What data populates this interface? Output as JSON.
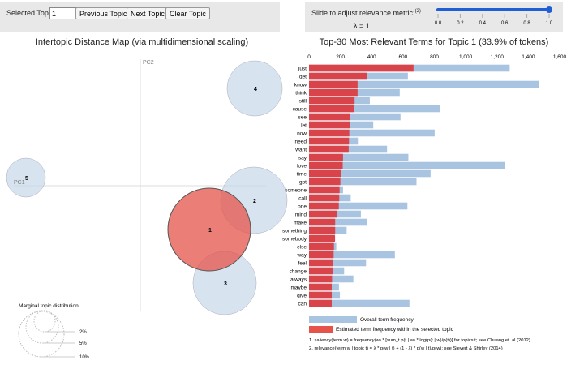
{
  "controls": {
    "selected_topic_label": "Selected Topic:",
    "selected_topic_value": "1",
    "previous_label": "Previous Topic",
    "next_label": "Next Topic",
    "clear_label": "Clear Topic",
    "slider_label": "Slide to adjust relevance metric:",
    "slider_footnote": "(2)",
    "lambda_text": "λ = 1",
    "lambda_value": 1,
    "slider_ticks": [
      "0.0",
      "0.2",
      "0.4",
      "0.6",
      "0.8",
      "1.0"
    ],
    "slider_color": "#1f5fd6"
  },
  "left": {
    "title": "Intertopic Distance Map (via multidimensional scaling)",
    "pc1": "PC1",
    "pc2": "PC2",
    "topics": [
      {
        "id": "1",
        "selected": true
      },
      {
        "id": "2",
        "selected": false
      },
      {
        "id": "3",
        "selected": false
      },
      {
        "id": "4",
        "selected": false
      },
      {
        "id": "5",
        "selected": false
      }
    ],
    "marginal_title": "Marginal topic distribution",
    "marginal_labels": [
      "2%",
      "5%",
      "10%"
    ],
    "colors": {
      "selected": "#e5534b",
      "unselected": "#c6d9ea"
    }
  },
  "chart_data": {
    "type": "bar",
    "title": "Top-30 Most Relevant Terms for Topic 1 (33.9% of tokens)",
    "orientation": "horizontal",
    "xlim": [
      0,
      1600
    ],
    "x_ticks": [
      "0",
      "200",
      "400",
      "600",
      "800",
      "1,000",
      "1,200",
      "1,400",
      "1,600"
    ],
    "categories": [
      "just",
      "get",
      "know",
      "think",
      "still",
      "cause",
      "see",
      "let",
      "now",
      "need",
      "want",
      "say",
      "love",
      "time",
      "got",
      "someone",
      "call",
      "one",
      "mind",
      "make",
      "something",
      "somebody",
      "else",
      "way",
      "feel",
      "change",
      "always",
      "maybe",
      "give",
      "can"
    ],
    "series": [
      {
        "name": "Overall term frequency",
        "color": "#a9c4e0",
        "values": [
          1281,
          631,
          1469,
          579,
          388,
          838,
          584,
          410,
          802,
          312,
          498,
          634,
          1253,
          776,
          686,
          217,
          266,
          628,
          331,
          372,
          240,
          166,
          174,
          548,
          364,
          224,
          283,
          191,
          197,
          641
        ]
      },
      {
        "name": "Estimated term frequency within the selected topic",
        "color": "#d9434a",
        "values": [
          667,
          369,
          310,
          310,
          291,
          288,
          259,
          259,
          257,
          255,
          253,
          217,
          215,
          203,
          200,
          195,
          193,
          190,
          178,
          167,
          167,
          166,
          159,
          157,
          155,
          150,
          147,
          145,
          145,
          145
        ]
      }
    ],
    "footnotes": [
      "1. saliency(term w) = frequency(w) * [sum_t p(t | w) * log(p(t | w)/p(t))] for topics t; see Chuang et. al (2012)",
      "2. relevance(term w | topic t) = λ * p(w | t) + (1 - λ) * p(w | t)/p(w); see Sievert & Shirley (2014)"
    ]
  }
}
